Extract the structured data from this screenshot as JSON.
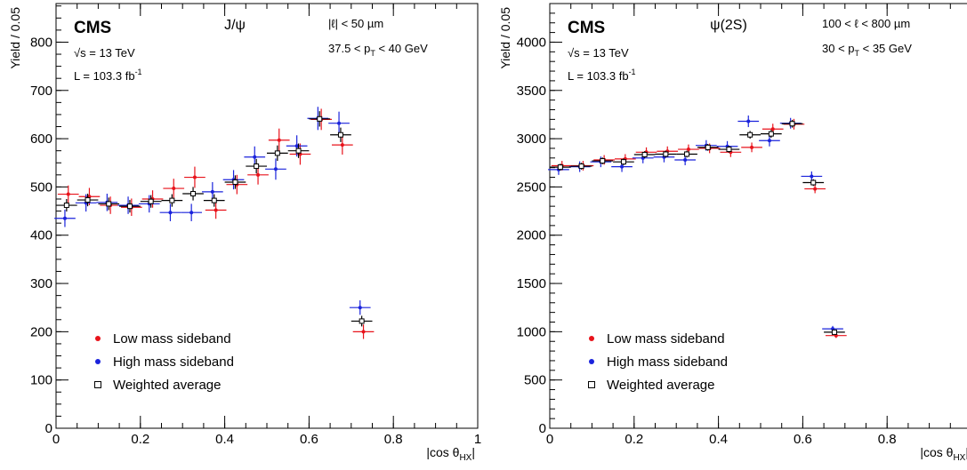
{
  "chart_data": [
    {
      "type": "scatter",
      "panel": "left",
      "experiment": "CMS",
      "energy_label": "√s = 13 TeV",
      "lumi_label": "L = 103.3 fb",
      "lumi_sup": "-1",
      "process": "J/ψ",
      "cut1": "|ℓ| < 50 µm",
      "cut2_pre": "37.5 < p",
      "cut2_sub": "T",
      "cut2_post": " < 40 GeV",
      "xlabel": "|cos θ",
      "xlabel_sub": "HX",
      "xlabel_post": "|",
      "ylabel": "Yield / 0.05",
      "xlim": [
        0,
        1
      ],
      "ylim": [
        0,
        880
      ],
      "x_ticks": [
        0,
        0.2,
        0.4,
        0.6,
        0.8,
        1
      ],
      "x_tick_labels": [
        "0",
        "0.2",
        "0.4",
        "0.6",
        "0.8",
        "1"
      ],
      "y_ticks": [
        0,
        100,
        200,
        300,
        400,
        500,
        600,
        700,
        800
      ],
      "y_tick_labels": [
        "0",
        "100",
        "200",
        "300",
        "400",
        "500",
        "600",
        "700",
        "800"
      ],
      "x_bins": [
        0.025,
        0.075,
        0.125,
        0.175,
        0.225,
        0.275,
        0.325,
        0.375,
        0.425,
        0.475,
        0.525,
        0.575,
        0.625,
        0.675,
        0.725
      ],
      "series": [
        {
          "name": "Low mass sideband",
          "marker": "dot",
          "color": "#e8131b",
          "offset": 0.004,
          "values": [
            485,
            480,
            462,
            458,
            475,
            497,
            520,
            452,
            505,
            525,
            597,
            568,
            640,
            587,
            200
          ],
          "errors": [
            18,
            18,
            18,
            18,
            18,
            20,
            22,
            18,
            20,
            20,
            24,
            22,
            22,
            20,
            15
          ]
        },
        {
          "name": "High mass sideband",
          "marker": "dot",
          "color": "#1a23dc",
          "offset": -0.004,
          "values": [
            435,
            467,
            468,
            462,
            465,
            447,
            447,
            490,
            515,
            562,
            537,
            585,
            642,
            632,
            250
          ],
          "errors": [
            18,
            18,
            18,
            18,
            18,
            18,
            18,
            20,
            20,
            22,
            22,
            22,
            24,
            24,
            15
          ]
        },
        {
          "name": "Weighted average",
          "marker": "open-square",
          "color": "#000000",
          "offset": 0,
          "values": [
            462,
            473,
            465,
            460,
            470,
            472,
            486,
            472,
            510,
            543,
            570,
            575,
            641,
            608,
            222
          ],
          "errors": [
            13,
            13,
            13,
            13,
            13,
            13,
            14,
            13,
            14,
            15,
            16,
            15,
            16,
            15,
            11
          ]
        }
      ]
    },
    {
      "type": "scatter",
      "panel": "right",
      "experiment": "CMS",
      "energy_label": "√s = 13 TeV",
      "lumi_label": "L = 103.3 fb",
      "lumi_sup": "-1",
      "process": "ψ(2S)",
      "cut1": "100 < ℓ < 800 µm",
      "cut2_pre": "30 < p",
      "cut2_sub": "T",
      "cut2_post": " < 35 GeV",
      "xlabel": "|cos θ",
      "xlabel_sub": "HX",
      "xlabel_post": "|",
      "ylabel": "Yield / 0.05",
      "xlim": [
        0,
        1
      ],
      "ylim": [
        0,
        4400
      ],
      "x_ticks": [
        0,
        0.2,
        0.4,
        0.6,
        0.8
      ],
      "x_tick_labels": [
        "0",
        "0.2",
        "0.4",
        "0.6",
        "0.8"
      ],
      "y_ticks": [
        0,
        500,
        1000,
        1500,
        2000,
        2500,
        3000,
        3500,
        4000
      ],
      "y_tick_labels": [
        "0",
        "500",
        "1000",
        "1500",
        "2000",
        "2500",
        "3000",
        "3500",
        "4000"
      ],
      "x_bins": [
        0.025,
        0.075,
        0.125,
        0.175,
        0.225,
        0.275,
        0.325,
        0.375,
        0.425,
        0.475,
        0.525,
        0.575,
        0.625,
        0.675
      ],
      "series": [
        {
          "name": "Low mass sideband",
          "marker": "dot",
          "color": "#e8131b",
          "offset": 0.004,
          "values": [
            2720,
            2720,
            2780,
            2790,
            2860,
            2870,
            2890,
            2900,
            2860,
            2910,
            3100,
            3150,
            2480,
            960
          ],
          "errors": [
            50,
            50,
            50,
            50,
            50,
            50,
            50,
            50,
            50,
            50,
            55,
            55,
            45,
            25
          ]
        },
        {
          "name": "High mass sideband",
          "marker": "dot",
          "color": "#1a23dc",
          "offset": -0.004,
          "values": [
            2680,
            2710,
            2760,
            2710,
            2800,
            2810,
            2780,
            2930,
            2920,
            3180,
            2980,
            3160,
            2610,
            1030
          ],
          "errors": [
            55,
            55,
            55,
            55,
            55,
            55,
            55,
            55,
            55,
            60,
            60,
            55,
            50,
            30
          ]
        },
        {
          "name": "Weighted average",
          "marker": "open-square",
          "color": "#000000",
          "offset": 0,
          "values": [
            2705,
            2715,
            2770,
            2760,
            2835,
            2840,
            2840,
            2910,
            2890,
            3040,
            3050,
            3155,
            2545,
            995
          ],
          "errors": [
            35,
            35,
            35,
            35,
            35,
            35,
            35,
            35,
            35,
            40,
            40,
            40,
            35,
            20
          ]
        }
      ]
    }
  ]
}
